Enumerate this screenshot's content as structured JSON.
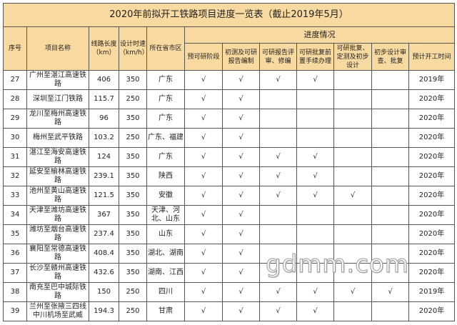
{
  "title": "2020年前拟开工铁路项目进度一览表（截止2019年5月）",
  "headers": {
    "seq": "序号",
    "name": "项目名称",
    "length": "线路长度（km）",
    "speed": "设计时速（km/h）",
    "province": "所在省市区",
    "progress": "进度情况",
    "stages": [
      "预可研阶段",
      "初测及可研报告编制",
      "可研报告评审、修编",
      "可研批复前置手续办理",
      "可研批复、定测及初步设计",
      "初步设计审查、批复"
    ],
    "year": "预计开工时间"
  },
  "check": "√",
  "rows": [
    {
      "seq": "27",
      "name": "广州至湛江高速铁路",
      "length": "406",
      "speed": "350",
      "province": "广东",
      "stages": [
        1,
        1,
        1,
        1,
        0,
        0
      ],
      "year": "2019年"
    },
    {
      "seq": "28",
      "name": "深圳至江门铁路",
      "length": "115.7",
      "speed": "250",
      "province": "广东",
      "stages": [
        1,
        1,
        0,
        0,
        0,
        0
      ],
      "year": "2020年"
    },
    {
      "seq": "29",
      "name": "龙川至梅州高速铁路",
      "length": "96",
      "speed": "350",
      "province": "广东",
      "stages": [
        1,
        1,
        0,
        0,
        0,
        0
      ],
      "year": "2020年"
    },
    {
      "seq": "30",
      "name": "梅州至武平铁路",
      "length": "103.2",
      "speed": "250",
      "province": "广东、福建",
      "stages": [
        1,
        1,
        0,
        0,
        0,
        0
      ],
      "year": "2020年"
    },
    {
      "seq": "31",
      "name": "湛江至海安高速铁路",
      "length": "124",
      "speed": "350",
      "province": "广东",
      "stages": [
        1,
        1,
        1,
        1,
        0,
        0
      ],
      "year": "2020年"
    },
    {
      "seq": "32",
      "name": "延安至榆林高速铁路",
      "length": "239.1",
      "speed": "350",
      "province": "陕西",
      "stages": [
        1,
        1,
        1,
        1,
        0,
        0
      ],
      "year": "2020年"
    },
    {
      "seq": "33",
      "name": "池州至黄山高速铁路",
      "length": "121.5",
      "speed": "350",
      "province": "安徽",
      "stages": [
        1,
        1,
        1,
        1,
        1,
        0
      ],
      "year": "2020年"
    },
    {
      "seq": "34",
      "name": "天津至潍坊高速铁路",
      "length": "367",
      "speed": "350",
      "province": "天津、河北、山东",
      "stages": [
        1,
        1,
        0,
        0,
        0,
        0
      ],
      "year": "2020年"
    },
    {
      "seq": "35",
      "name": "潍坊至烟台高速铁路",
      "length": "237.4",
      "speed": "350",
      "province": "山东",
      "stages": [
        1,
        1,
        0,
        0,
        0,
        0
      ],
      "year": "2020年"
    },
    {
      "seq": "36",
      "name": "襄阳至常德高速铁路",
      "length": "408.4",
      "speed": "350",
      "province": "湖北、湖南",
      "stages": [
        1,
        1,
        0,
        0,
        0,
        0
      ],
      "year": "2020年"
    },
    {
      "seq": "37",
      "name": "长沙至赣州高速铁路",
      "length": "432.6",
      "speed": "350",
      "province": "湖南、江西",
      "stages": [
        1,
        1,
        0,
        0,
        0,
        0
      ],
      "year": "2020年"
    },
    {
      "seq": "38",
      "name": "南充至巴中城际铁路",
      "length": "150",
      "speed": "250",
      "province": "四川",
      "stages": [
        1,
        1,
        1,
        1,
        1,
        1
      ],
      "year": "2019年"
    },
    {
      "seq": "39",
      "name": "兰州至张掖三四线中川机场至武威",
      "length": "194.3",
      "speed": "250",
      "province": "甘肃",
      "stages": [
        1,
        1,
        1,
        1,
        0,
        0
      ],
      "year": "2020年"
    }
  ],
  "watermark": "gdmm.com"
}
